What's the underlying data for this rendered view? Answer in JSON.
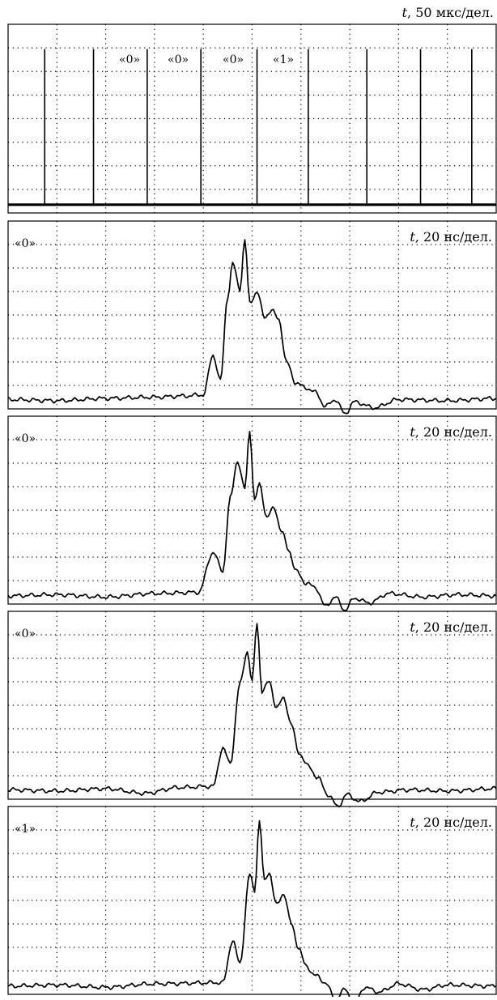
{
  "figure": {
    "time_axis_label": "t",
    "panels": [
      {
        "id": "pulse-train",
        "scale_text": "50 мкс/дел.",
        "bit_labels": [
          "«0»",
          "«0»",
          "«0»",
          "«1»"
        ]
      },
      {
        "id": "pulse-0a",
        "scale_text": "20 нс/дел.",
        "bit_label": "«0»"
      },
      {
        "id": "pulse-0b",
        "scale_text": "20 нс/дел.",
        "bit_label": "«0»"
      },
      {
        "id": "pulse-0c",
        "scale_text": "20 нс/дел.",
        "bit_label": "«0»"
      },
      {
        "id": "pulse-1",
        "scale_text": "20 нс/дел.",
        "bit_label": "«1»"
      }
    ]
  },
  "chart_data": [
    {
      "type": "line",
      "panel": "pulse-train",
      "divisions": {
        "x": 10,
        "y": 8
      },
      "spike_positions_div": [
        0.75,
        1.75,
        2.85,
        3.95,
        5.1,
        6.15,
        7.35,
        8.45,
        9.5
      ],
      "baseline_div": 0.35,
      "spike_height_div": 6.6,
      "grid": "dotted"
    },
    {
      "type": "line",
      "panel": "pulse-0a",
      "divisions": {
        "x": 10,
        "y": 8
      },
      "x": [
        0,
        1,
        2,
        3,
        3.6,
        4.0,
        4.2,
        4.35,
        4.5,
        4.6,
        4.75,
        4.85,
        4.95,
        5.1,
        5.25,
        5.4,
        5.55,
        5.7,
        5.9,
        6.1,
        6.3,
        6.5,
        6.7,
        6.9,
        7.1,
        7.5,
        8,
        9,
        10
      ],
      "y": [
        0.4,
        0.35,
        0.45,
        0.5,
        0.55,
        0.6,
        2.3,
        1.2,
        4.8,
        6.2,
        5.1,
        7.2,
        4.5,
        5.0,
        3.9,
        4.2,
        3.8,
        2.0,
        1.1,
        0.9,
        0.7,
        0.1,
        0.4,
        -0.2,
        0.3,
        0.05,
        0.4,
        0.35,
        0.45
      ],
      "grid": "dotted"
    },
    {
      "type": "line",
      "panel": "pulse-0b",
      "divisions": {
        "x": 10,
        "y": 8
      },
      "x": [
        0,
        1,
        2,
        3,
        3.9,
        4.2,
        4.4,
        4.55,
        4.7,
        4.85,
        4.95,
        5.05,
        5.15,
        5.3,
        5.45,
        5.6,
        5.75,
        5.9,
        6.1,
        6.3,
        6.5,
        6.7,
        6.9,
        7.1,
        7.4,
        7.8,
        8.5,
        9.2,
        10
      ],
      "y": [
        0.35,
        0.4,
        0.3,
        0.45,
        0.5,
        2.2,
        1.4,
        4.5,
        6.1,
        4.9,
        7.4,
        4.4,
        5.1,
        3.7,
        4.1,
        3.1,
        2.3,
        1.4,
        0.9,
        0.7,
        -0.1,
        0.3,
        -0.25,
        0.25,
        0.05,
        0.45,
        0.3,
        0.4,
        0.35
      ],
      "grid": "dotted"
    },
    {
      "type": "line",
      "panel": "pulse-0c",
      "divisions": {
        "x": 10,
        "y": 8
      },
      "x": [
        0,
        1,
        2,
        2.8,
        3.5,
        4.2,
        4.4,
        4.55,
        4.75,
        4.9,
        5.0,
        5.1,
        5.2,
        5.35,
        5.5,
        5.65,
        5.8,
        5.95,
        6.15,
        6.35,
        6.55,
        6.75,
        6.95,
        7.2,
        7.6,
        8.2,
        9,
        10
      ],
      "y": [
        0.4,
        0.35,
        0.45,
        0.25,
        0.5,
        0.55,
        2.2,
        1.5,
        4.9,
        6.3,
        5.0,
        7.5,
        4.6,
        5.0,
        3.9,
        4.3,
        3.2,
        2.0,
        1.4,
        0.9,
        0.2,
        -0.3,
        0.2,
        -0.1,
        0.3,
        0.4,
        0.35,
        0.45
      ],
      "grid": "dotted"
    },
    {
      "type": "line",
      "panel": "pulse-1",
      "divisions": {
        "x": 10,
        "y": 8
      },
      "x": [
        0,
        1,
        2,
        3,
        4.4,
        4.6,
        4.75,
        4.95,
        5.05,
        5.15,
        5.25,
        5.35,
        5.5,
        5.65,
        5.8,
        5.95,
        6.1,
        6.3,
        6.5,
        6.7,
        6.9,
        7.1,
        7.3,
        7.6,
        8,
        8.5,
        9,
        10
      ],
      "y": [
        0.35,
        0.4,
        0.3,
        0.45,
        0.5,
        2.3,
        1.3,
        5.1,
        4.4,
        7.4,
        4.8,
        5.2,
        3.8,
        4.3,
        3.0,
        2.0,
        1.2,
        0.8,
        0.5,
        -0.2,
        0.2,
        -0.4,
        0.3,
        0.1,
        0.45,
        0.2,
        0.4,
        0.35
      ],
      "grid": "dotted"
    }
  ]
}
